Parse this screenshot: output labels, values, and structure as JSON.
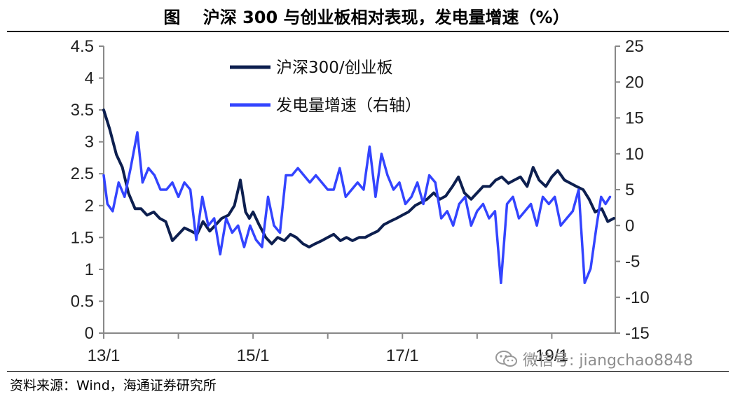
{
  "header": {
    "title": "图　 沪深 300 与创业板相对表现，发电量增速（%）"
  },
  "footer": {
    "source": "资料来源：Wind，海通证券研究所",
    "watermark": "微信号: jiangchao8848"
  },
  "chart_data": {
    "type": "line",
    "title": "",
    "xlabel": "",
    "ylabel": "",
    "y2label": "",
    "x_tick_labels": [
      "13/1",
      "15/1",
      "17/1",
      "19/1"
    ],
    "x_range": [
      2013.0,
      2019.85
    ],
    "ylim": [
      0,
      4.5
    ],
    "y_ticks": [
      0,
      0.5,
      1,
      1.5,
      2,
      2.5,
      3,
      3.5,
      4,
      4.5
    ],
    "y_tick_labels": [
      "0",
      "0.5",
      "1",
      "1.5",
      "2",
      "2.5",
      "3",
      "3.5",
      "4",
      "4.5"
    ],
    "y2lim": [
      -15,
      25
    ],
    "y2_ticks": [
      -15,
      -10,
      -5,
      0,
      5,
      10,
      15,
      20,
      25
    ],
    "y2_tick_labels": [
      "-15",
      "-10",
      "-5",
      "0",
      "5",
      "10",
      "15",
      "20",
      "25"
    ],
    "grid": false,
    "legend_position": "top-center",
    "series": [
      {
        "name": "沪深300/创业板",
        "axis": "left",
        "color": "#0d1f4f",
        "x": [
          2013.0,
          2013.08,
          2013.17,
          2013.25,
          2013.33,
          2013.42,
          2013.5,
          2013.58,
          2013.67,
          2013.75,
          2013.83,
          2013.92,
          2014.0,
          2014.08,
          2014.17,
          2014.25,
          2014.33,
          2014.42,
          2014.5,
          2014.58,
          2014.67,
          2014.75,
          2014.83,
          2014.9,
          2014.95,
          2015.0,
          2015.08,
          2015.17,
          2015.25,
          2015.33,
          2015.42,
          2015.5,
          2015.58,
          2015.67,
          2015.75,
          2015.83,
          2015.92,
          2016.0,
          2016.08,
          2016.17,
          2016.25,
          2016.33,
          2016.42,
          2016.5,
          2016.58,
          2016.67,
          2016.75,
          2016.83,
          2016.92,
          2017.0,
          2017.08,
          2017.17,
          2017.25,
          2017.33,
          2017.42,
          2017.5,
          2017.58,
          2017.67,
          2017.75,
          2017.83,
          2017.92,
          2018.0,
          2018.08,
          2018.17,
          2018.25,
          2018.33,
          2018.42,
          2018.5,
          2018.58,
          2018.67,
          2018.75,
          2018.83,
          2018.92,
          2019.0,
          2019.08,
          2019.17,
          2019.25,
          2019.33,
          2019.42,
          2019.5,
          2019.58,
          2019.67,
          2019.75,
          2019.83
        ],
        "values": [
          3.5,
          3.2,
          2.8,
          2.6,
          2.2,
          1.95,
          1.95,
          1.85,
          1.9,
          1.8,
          1.75,
          1.45,
          1.55,
          1.65,
          1.6,
          1.55,
          1.75,
          1.6,
          1.7,
          1.8,
          1.85,
          2.0,
          2.4,
          1.9,
          1.8,
          1.9,
          1.7,
          1.5,
          1.4,
          1.5,
          1.45,
          1.55,
          1.5,
          1.4,
          1.35,
          1.4,
          1.45,
          1.5,
          1.55,
          1.45,
          1.5,
          1.45,
          1.5,
          1.5,
          1.55,
          1.6,
          1.7,
          1.75,
          1.8,
          1.85,
          1.9,
          2.0,
          2.05,
          2.1,
          2.2,
          2.1,
          2.15,
          2.3,
          2.45,
          2.2,
          2.1,
          2.2,
          2.3,
          2.3,
          2.4,
          2.45,
          2.35,
          2.4,
          2.45,
          2.3,
          2.6,
          2.4,
          2.3,
          2.45,
          2.55,
          2.4,
          2.35,
          2.3,
          2.25,
          2.1,
          1.9,
          1.95,
          1.75,
          1.8
        ]
      },
      {
        "name": "发电量增速（右轴）",
        "axis": "right",
        "color": "#3344ff",
        "x": [
          2013.0,
          2013.05,
          2013.12,
          2013.2,
          2013.28,
          2013.36,
          2013.45,
          2013.52,
          2013.6,
          2013.68,
          2013.76,
          2013.84,
          2013.92,
          2014.0,
          2014.08,
          2014.16,
          2014.24,
          2014.32,
          2014.4,
          2014.48,
          2014.56,
          2014.64,
          2014.72,
          2014.8,
          2014.88,
          2014.96,
          2015.04,
          2015.12,
          2015.2,
          2015.28,
          2015.36,
          2015.44,
          2015.52,
          2015.6,
          2015.68,
          2015.76,
          2015.84,
          2015.92,
          2016.0,
          2016.08,
          2016.16,
          2016.24,
          2016.32,
          2016.4,
          2016.48,
          2016.56,
          2016.64,
          2016.72,
          2016.8,
          2016.88,
          2016.96,
          2017.04,
          2017.12,
          2017.2,
          2017.28,
          2017.36,
          2017.44,
          2017.52,
          2017.6,
          2017.68,
          2017.76,
          2017.84,
          2017.92,
          2018.0,
          2018.08,
          2018.16,
          2018.24,
          2018.32,
          2018.4,
          2018.48,
          2018.56,
          2018.64,
          2018.72,
          2018.8,
          2018.88,
          2018.96,
          2019.04,
          2019.12,
          2019.2,
          2019.28,
          2019.36,
          2019.44,
          2019.52,
          2019.6,
          2019.66,
          2019.72,
          2019.78
        ],
        "values": [
          7,
          3,
          2,
          6,
          4,
          8,
          13,
          6,
          8,
          7,
          5,
          5,
          6,
          4,
          6,
          5,
          -2,
          4,
          0,
          1,
          -4,
          1,
          -1,
          0,
          -3,
          0,
          -2,
          -3,
          4,
          0,
          -1,
          7,
          7,
          8,
          7,
          6,
          7,
          6,
          5,
          5,
          8,
          4,
          5,
          6,
          5,
          11,
          4,
          10,
          7,
          5,
          6,
          3,
          4,
          6,
          3,
          7,
          6,
          1,
          2,
          0,
          3,
          4,
          0,
          2,
          3,
          1,
          2,
          -8,
          3,
          4,
          1,
          2,
          3,
          0,
          4,
          3,
          4,
          0,
          1,
          2,
          5,
          -8,
          -6,
          0,
          4,
          3,
          4
        ]
      }
    ]
  }
}
